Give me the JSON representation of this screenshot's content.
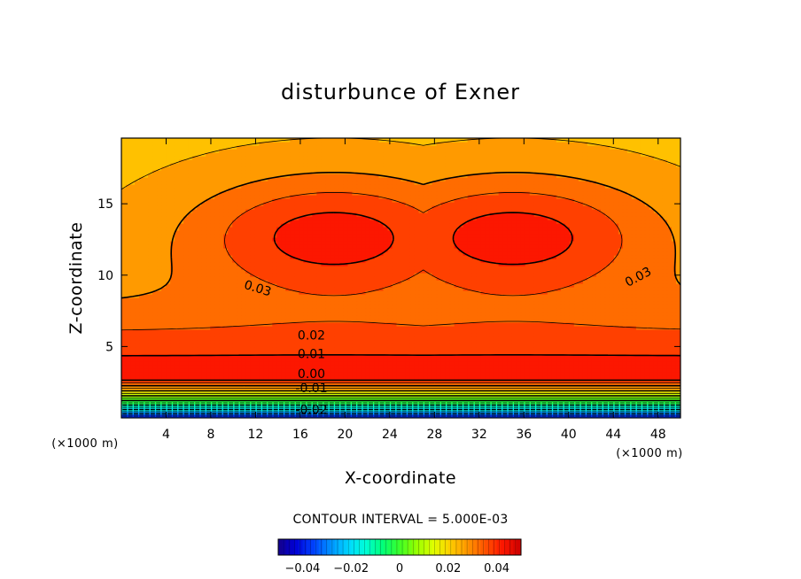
{
  "chart_data": {
    "type": "heatmap",
    "title": "disturbunce of Exner",
    "xlabel": "X-coordinate",
    "ylabel": "Z-coordinate",
    "x_unit": "(×1000 m)",
    "y_unit": "(×1000 m)",
    "xlim": [
      0,
      50
    ],
    "ylim": [
      0,
      19.6
    ],
    "xticks": [
      4,
      8,
      12,
      16,
      20,
      24,
      28,
      32,
      36,
      40,
      44,
      48
    ],
    "yticks": [
      5,
      10,
      15
    ],
    "contour_interval_text": "CONTOUR INTERVAL = 5.000E-03",
    "contour_interval": 0.005,
    "color_range": [
      -0.05,
      0.05
    ],
    "field_extrema": {
      "max": 0.042,
      "min": -0.045
    },
    "max_centers": [
      {
        "x": 19,
        "z": 12.7
      },
      {
        "x": 35,
        "z": 12.7
      }
    ],
    "contour_labels": [
      {
        "text": "0.03",
        "x": 12.2,
        "z": 9.1,
        "angle": 17
      },
      {
        "text": "0.03",
        "x": 46.2,
        "z": 9.9,
        "angle": -28
      },
      {
        "text": "0.02",
        "x": 17,
        "z": 5.8,
        "angle": 0
      },
      {
        "text": "0.01",
        "x": 17,
        "z": 4.5,
        "angle": 0
      },
      {
        "text": "0.00",
        "x": 17,
        "z": 3.1,
        "angle": 0
      },
      {
        "text": "-0.01",
        "x": 17,
        "z": 2.1,
        "angle": 0
      },
      {
        "text": "-0.02",
        "x": 17,
        "z": 0.6,
        "angle": 0
      }
    ],
    "colorbar": {
      "ticks": [
        {
          "value": -0.04,
          "label": "−0.04"
        },
        {
          "value": -0.02,
          "label": "−0.02"
        },
        {
          "value": 0,
          "label": "0"
        },
        {
          "value": 0.02,
          "label": "0.02"
        },
        {
          "value": 0.04,
          "label": "0.04"
        }
      ]
    }
  }
}
